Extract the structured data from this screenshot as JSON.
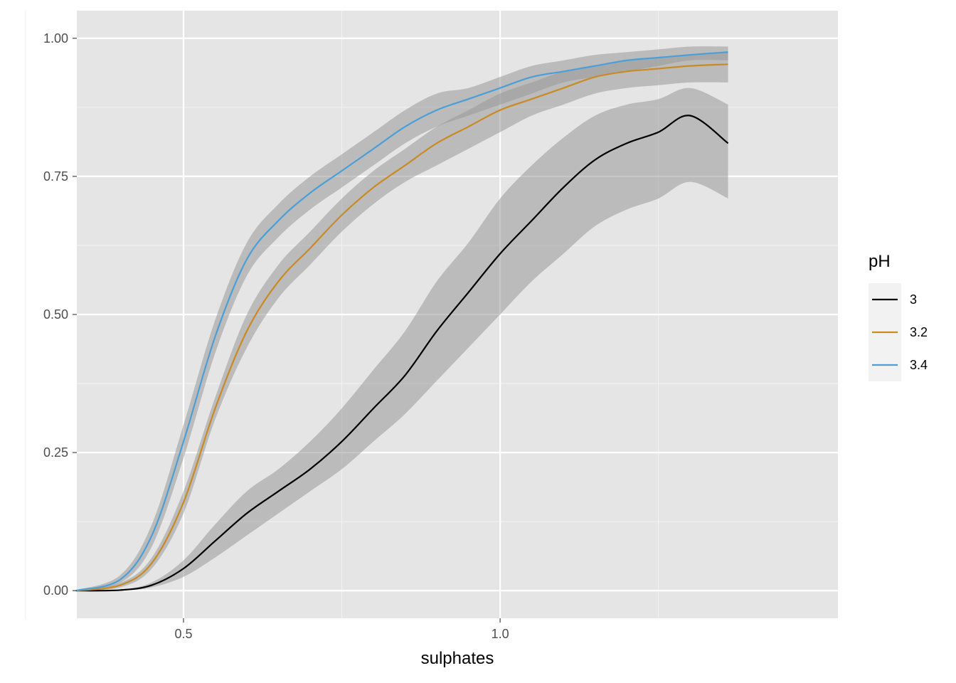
{
  "chart_data": {
    "type": "line",
    "title": "",
    "xlabel": "sulphates",
    "ylabel": "",
    "xlim": [
      0.3315,
      1.5335
    ],
    "ylim": [
      -0.05,
      1.05
    ],
    "x_ticks": [
      0.5,
      1.0
    ],
    "x_tick_labels": [
      "0.5",
      "1.0"
    ],
    "x_minor_ticks": [
      0.25,
      0.75,
      1.25
    ],
    "y_ticks": [
      0,
      0.25,
      0.5,
      0.75,
      1.0
    ],
    "y_tick_labels": [
      "0.00",
      "0.25",
      "0.50",
      "0.75",
      "1.00"
    ],
    "y_minor_ticks": [
      0.125,
      0.375,
      0.625,
      0.875
    ],
    "grid": true,
    "panel_background": "#e5e5e5",
    "ribbon_color": "#999999",
    "legend": {
      "title": "pH",
      "position": "right"
    },
    "series": [
      {
        "name": "3",
        "color": "#000000",
        "x": [
          0.33,
          0.4,
          0.45,
          0.5,
          0.55,
          0.6,
          0.65,
          0.7,
          0.75,
          0.8,
          0.85,
          0.9,
          0.95,
          1.0,
          1.05,
          1.1,
          1.15,
          1.2,
          1.25,
          1.3,
          1.36
        ],
        "y": [
          0.0,
          0.001,
          0.01,
          0.04,
          0.09,
          0.14,
          0.18,
          0.22,
          0.27,
          0.33,
          0.39,
          0.47,
          0.54,
          0.61,
          0.67,
          0.73,
          0.78,
          0.81,
          0.83,
          0.86,
          0.81
        ],
        "lower": [
          0.0,
          0.0,
          0.006,
          0.025,
          0.06,
          0.1,
          0.14,
          0.18,
          0.22,
          0.27,
          0.32,
          0.38,
          0.44,
          0.5,
          0.56,
          0.61,
          0.66,
          0.69,
          0.71,
          0.74,
          0.71
        ],
        "upper": [
          0.001,
          0.002,
          0.015,
          0.055,
          0.12,
          0.18,
          0.22,
          0.27,
          0.33,
          0.4,
          0.47,
          0.56,
          0.63,
          0.71,
          0.77,
          0.82,
          0.86,
          0.88,
          0.89,
          0.91,
          0.88
        ]
      },
      {
        "name": "3.2",
        "color": "#c98a24",
        "x": [
          0.33,
          0.4,
          0.45,
          0.5,
          0.55,
          0.6,
          0.65,
          0.7,
          0.75,
          0.8,
          0.85,
          0.9,
          0.95,
          1.0,
          1.05,
          1.1,
          1.15,
          1.2,
          1.25,
          1.3,
          1.36
        ],
        "y": [
          0.0,
          0.01,
          0.05,
          0.16,
          0.33,
          0.47,
          0.56,
          0.62,
          0.68,
          0.73,
          0.77,
          0.81,
          0.84,
          0.87,
          0.89,
          0.91,
          0.93,
          0.94,
          0.945,
          0.95,
          0.953
        ],
        "lower": [
          0.0,
          0.006,
          0.04,
          0.14,
          0.31,
          0.44,
          0.53,
          0.59,
          0.65,
          0.7,
          0.74,
          0.77,
          0.8,
          0.83,
          0.86,
          0.88,
          0.9,
          0.91,
          0.915,
          0.92,
          0.92
        ],
        "upper": [
          0.001,
          0.014,
          0.06,
          0.18,
          0.35,
          0.5,
          0.59,
          0.65,
          0.71,
          0.76,
          0.8,
          0.84,
          0.87,
          0.9,
          0.92,
          0.94,
          0.95,
          0.96,
          0.965,
          0.97,
          0.975
        ]
      },
      {
        "name": "3.4",
        "color": "#4a9fd8",
        "x": [
          0.33,
          0.4,
          0.45,
          0.5,
          0.55,
          0.6,
          0.65,
          0.7,
          0.75,
          0.8,
          0.85,
          0.9,
          0.95,
          1.0,
          1.05,
          1.1,
          1.15,
          1.2,
          1.25,
          1.3,
          1.36
        ],
        "y": [
          0.0,
          0.02,
          0.1,
          0.27,
          0.46,
          0.6,
          0.67,
          0.72,
          0.76,
          0.8,
          0.84,
          0.87,
          0.89,
          0.91,
          0.93,
          0.94,
          0.95,
          0.96,
          0.965,
          0.97,
          0.975
        ],
        "lower": [
          0.0,
          0.014,
          0.08,
          0.24,
          0.43,
          0.57,
          0.64,
          0.69,
          0.73,
          0.77,
          0.81,
          0.84,
          0.86,
          0.88,
          0.9,
          0.92,
          0.93,
          0.94,
          0.95,
          0.96,
          0.96
        ],
        "upper": [
          0.001,
          0.028,
          0.12,
          0.3,
          0.49,
          0.63,
          0.7,
          0.75,
          0.79,
          0.83,
          0.87,
          0.9,
          0.91,
          0.93,
          0.95,
          0.96,
          0.97,
          0.975,
          0.98,
          0.985,
          0.985
        ]
      }
    ]
  }
}
